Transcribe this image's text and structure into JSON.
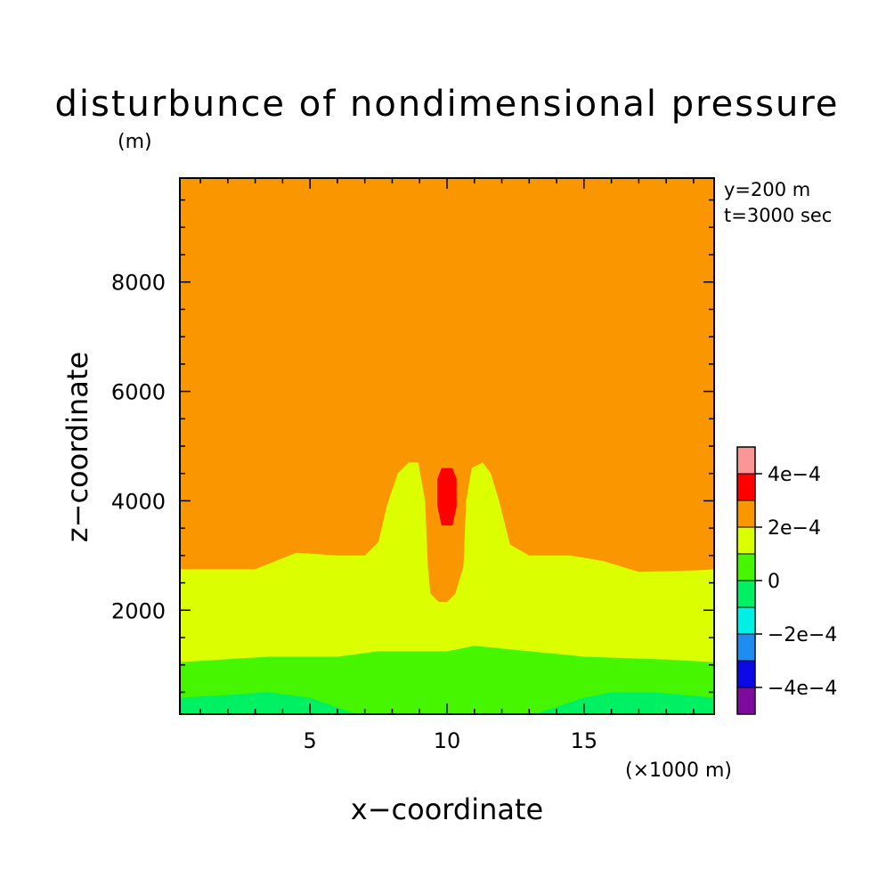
{
  "chart_data": {
    "type": "heatmap",
    "title": "disturbunce of nondimensional pressure",
    "subtitle": "(m)",
    "annotations": [
      "y=200 m",
      "t=3000 sec"
    ],
    "xlabel": "x−coordinate",
    "xunit": "(×1000 m)",
    "ylabel": "z−coordinate",
    "xlim": [
      0.25,
      19.75
    ],
    "ylim": [
      100,
      9900
    ],
    "xticks": [
      {
        "value": 5,
        "label": "5"
      },
      {
        "value": 10,
        "label": "10"
      },
      {
        "value": 15,
        "label": "15"
      }
    ],
    "yticks": [
      {
        "value": 2000,
        "label": "2000"
      },
      {
        "value": 4000,
        "label": "4000"
      },
      {
        "value": 6000,
        "label": "6000"
      },
      {
        "value": 8000,
        "label": "8000"
      }
    ],
    "colorbar": {
      "placement": "right",
      "levels": [
        {
          "range": "< -4e-4",
          "color": "#7f0aa0"
        },
        {
          "range": "-4e-4 to -3e-4",
          "color": "#0a0ae6"
        },
        {
          "range": "-3e-4 to -2e-4",
          "color": "#1e8cf0"
        },
        {
          "range": "-2e-4 to -1e-4",
          "color": "#00f0e6"
        },
        {
          "range": "-1e-4 to 0",
          "color": "#00f064"
        },
        {
          "range": "0 to 1e-4",
          "color": "#46f500"
        },
        {
          "range": "1e-4 to 2e-4",
          "color": "#dcff00"
        },
        {
          "range": "2e-4 to 3e-4",
          "color": "#fa9600"
        },
        {
          "range": "3e-4 to 4e-4",
          "color": "#ff0000"
        },
        {
          "range": "> 4e-4",
          "color": "#fa9696"
        }
      ],
      "tick_labels": [
        {
          "value": "-4e-4",
          "label": "−4e−4"
        },
        {
          "value": "-2e-4",
          "label": "−2e−4"
        },
        {
          "value": "0",
          "label": "0"
        },
        {
          "value": "2e-4",
          "label": "2e−4"
        },
        {
          "value": "4e-4",
          "label": "4e−4"
        }
      ]
    },
    "regions": [
      {
        "name": "level 2e-4 to 3e-4",
        "color": "#fa9600",
        "points": [
          [
            0.25,
            100
          ],
          [
            19.75,
            100
          ],
          [
            19.75,
            9900
          ],
          [
            0.25,
            9900
          ]
        ]
      },
      {
        "name": "level 1e-4 to 2e-4",
        "color": "#dcff00",
        "points": [
          [
            0.25,
            100
          ],
          [
            19.75,
            100
          ],
          [
            19.75,
            2750
          ],
          [
            19.2,
            2730
          ],
          [
            17,
            2700
          ],
          [
            15.7,
            2900
          ],
          [
            14.5,
            3000
          ],
          [
            13,
            3000
          ],
          [
            12.3,
            3200
          ],
          [
            11.9,
            4000
          ],
          [
            11.6,
            4500
          ],
          [
            11.3,
            4700
          ],
          [
            10.9,
            4600
          ],
          [
            10.7,
            4000
          ],
          [
            10.6,
            2800
          ],
          [
            10.3,
            2300
          ],
          [
            10,
            2150
          ],
          [
            9.7,
            2150
          ],
          [
            9.4,
            2300
          ],
          [
            9.3,
            2800
          ],
          [
            9.2,
            4000
          ],
          [
            8.95,
            4700
          ],
          [
            8.6,
            4700
          ],
          [
            8.2,
            4500
          ],
          [
            7.8,
            3900
          ],
          [
            7.5,
            3250
          ],
          [
            7,
            3000
          ],
          [
            6,
            3000
          ],
          [
            4.5,
            3050
          ],
          [
            3,
            2750
          ],
          [
            0.25,
            2750
          ]
        ]
      },
      {
        "name": "level 0 to 1e-4",
        "color": "#46f500",
        "points": [
          [
            0.25,
            100
          ],
          [
            19.75,
            100
          ],
          [
            19.75,
            1050
          ],
          [
            18,
            1100
          ],
          [
            15,
            1150
          ],
          [
            13,
            1250
          ],
          [
            11,
            1350
          ],
          [
            10,
            1250
          ],
          [
            9,
            1250
          ],
          [
            7.5,
            1250
          ],
          [
            6,
            1150
          ],
          [
            3.5,
            1150
          ],
          [
            0.25,
            1050
          ]
        ]
      },
      {
        "name": "level -1e-4 to 0",
        "color": "#00f064",
        "points": [
          [
            0.25,
            100
          ],
          [
            19.75,
            100
          ],
          [
            19.75,
            400
          ],
          [
            17.5,
            500
          ],
          [
            16,
            500
          ],
          [
            15,
            400
          ],
          [
            13.2,
            100
          ],
          [
            6.7,
            100
          ],
          [
            5,
            400
          ],
          [
            3.5,
            500
          ],
          [
            2,
            450
          ],
          [
            0.25,
            400
          ]
        ]
      },
      {
        "name": "level 3e-4 to 4e-4",
        "color": "#ff0000",
        "points": [
          [
            9.8,
            3550
          ],
          [
            10.2,
            3550
          ],
          [
            10.35,
            3900
          ],
          [
            10.35,
            4400
          ],
          [
            10.2,
            4600
          ],
          [
            9.8,
            4600
          ],
          [
            9.65,
            4400
          ],
          [
            9.65,
            3900
          ]
        ]
      }
    ]
  }
}
